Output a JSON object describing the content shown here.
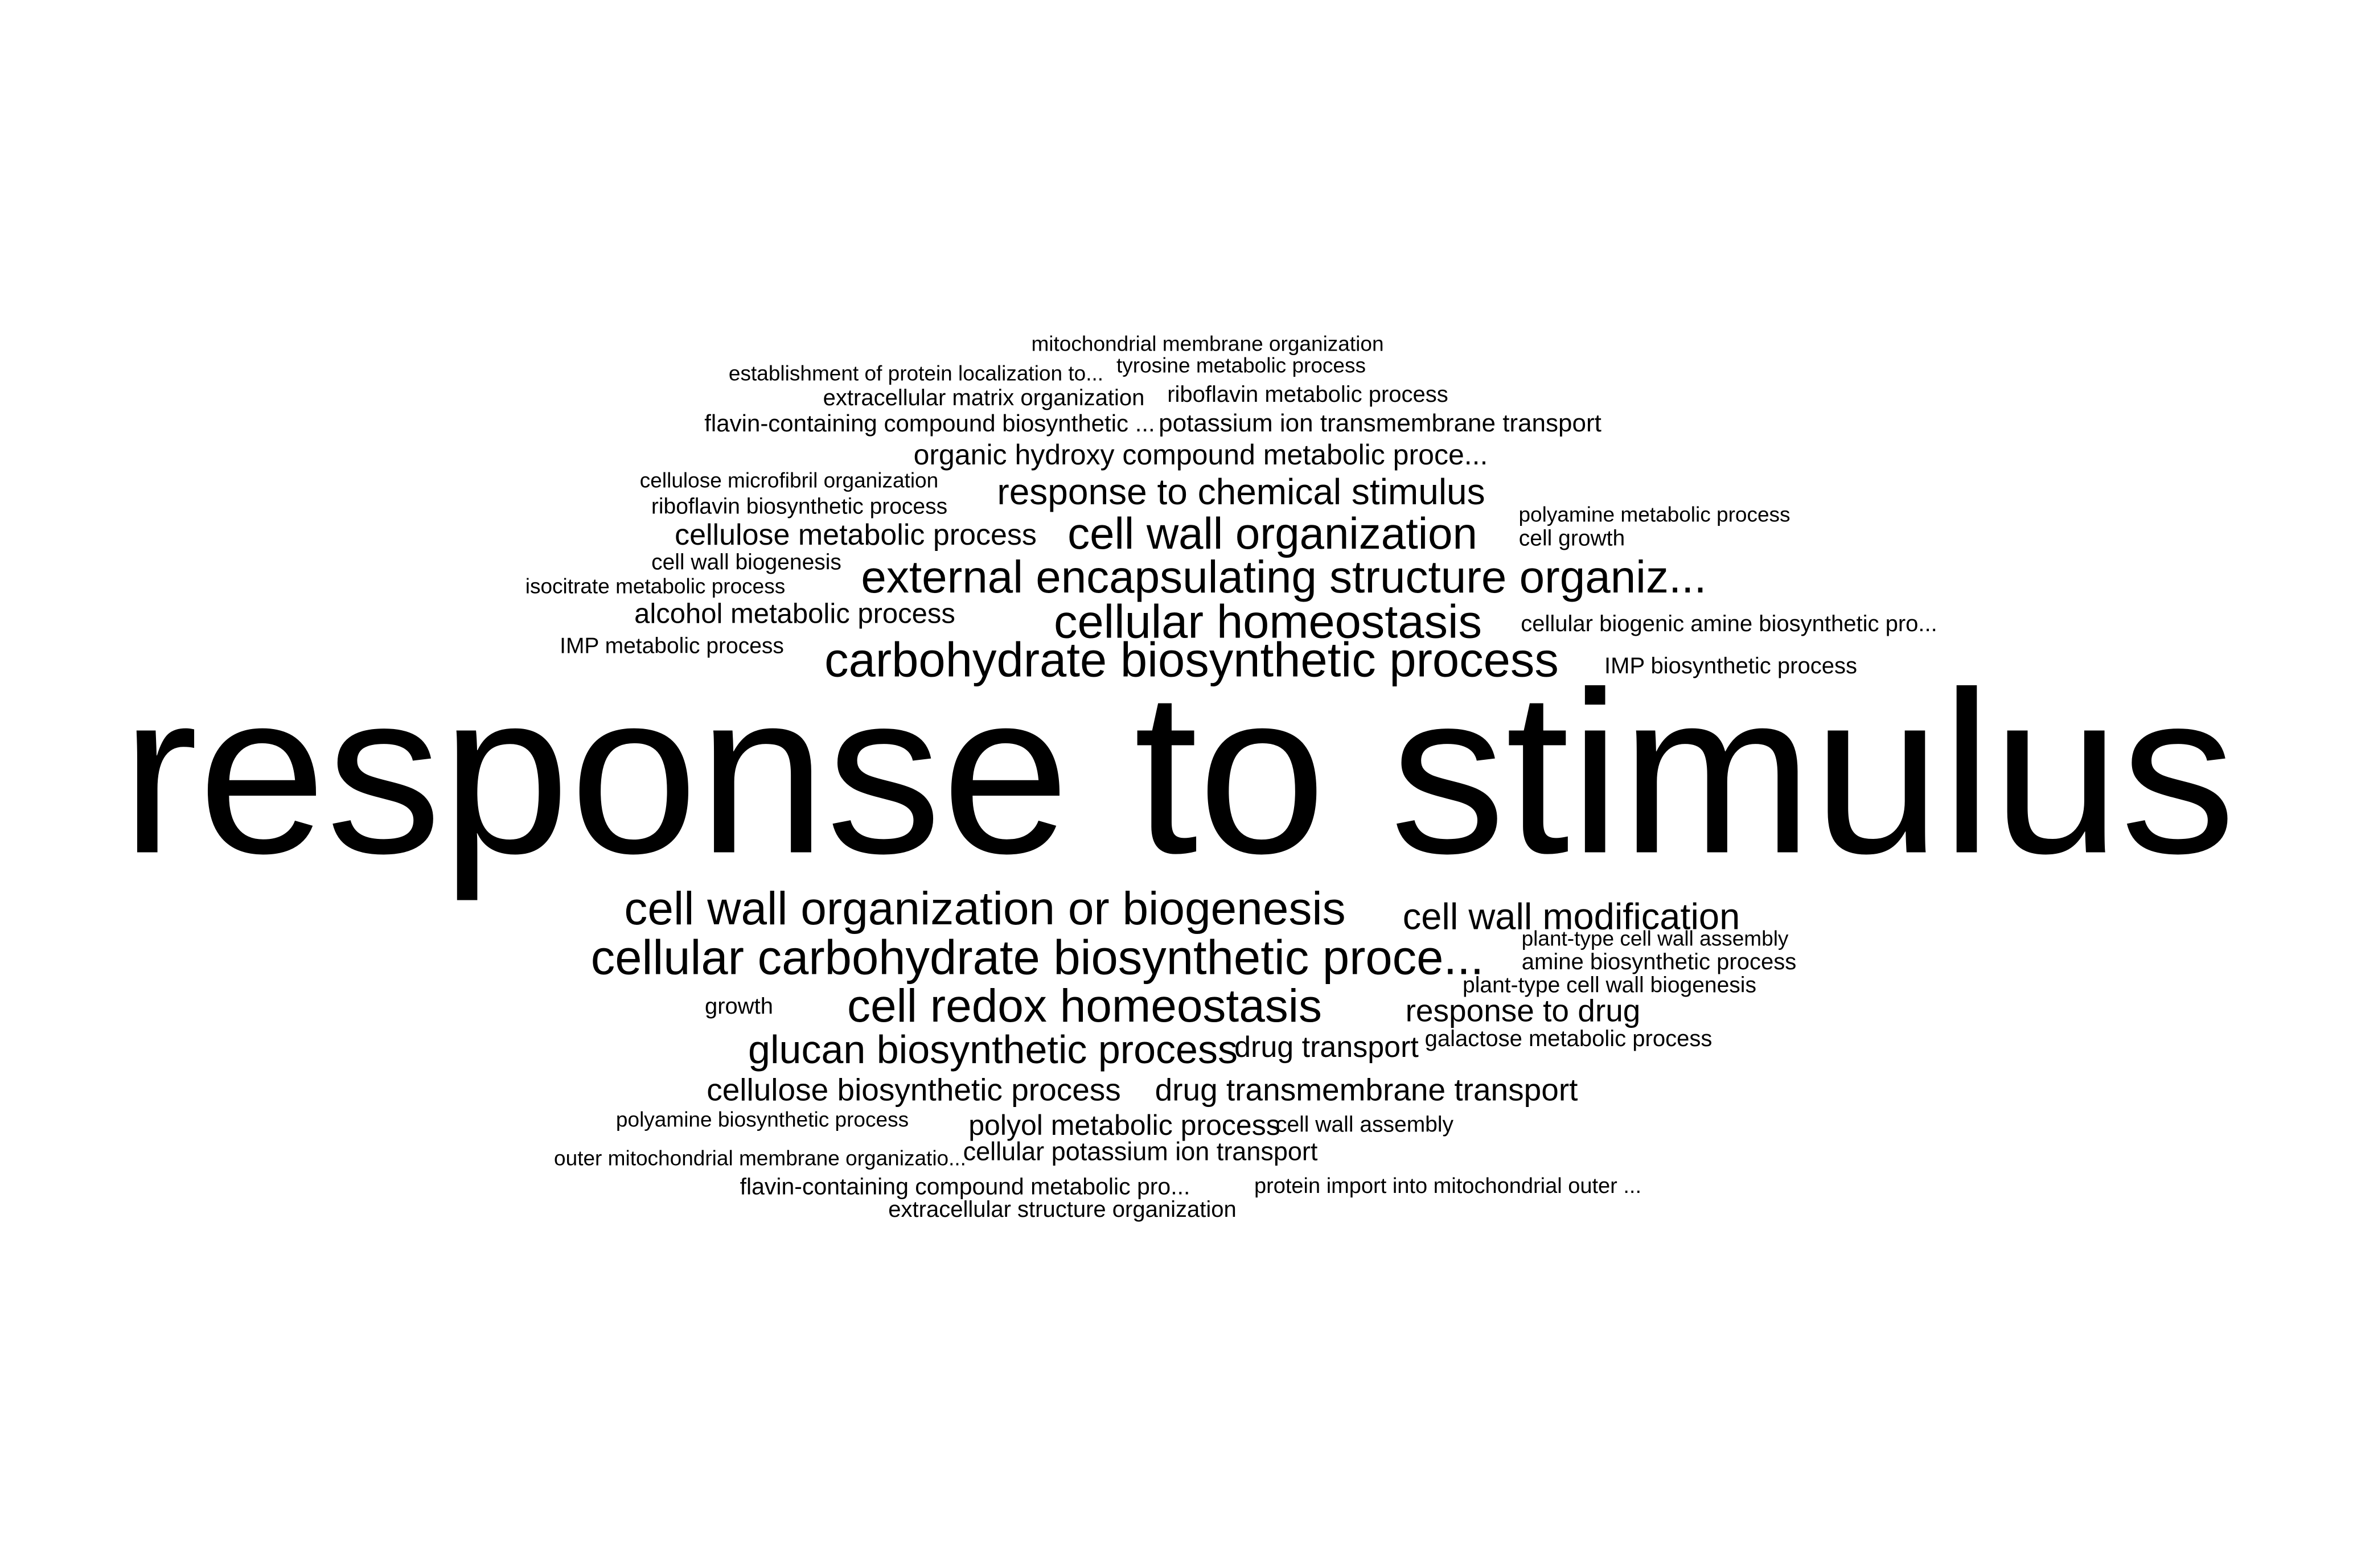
{
  "word_cloud": {
    "text_color": "#000000",
    "background_color": "#ffffff",
    "terms": [
      {
        "text": "mitochondrial membrane organization"
      },
      {
        "text": "establishment of protein localization to..."
      },
      {
        "text": "tyrosine metabolic process"
      },
      {
        "text": "extracellular matrix organization"
      },
      {
        "text": "riboflavin metabolic process"
      },
      {
        "text": "flavin-containing compound biosynthetic ..."
      },
      {
        "text": "potassium ion transmembrane transport"
      },
      {
        "text": "organic hydroxy compound metabolic proce..."
      },
      {
        "text": "cellulose microfibril organization"
      },
      {
        "text": "response to chemical stimulus"
      },
      {
        "text": "riboflavin biosynthetic process"
      },
      {
        "text": "polyamine metabolic process"
      },
      {
        "text": "cellulose metabolic process"
      },
      {
        "text": "cell wall organization"
      },
      {
        "text": "cell growth"
      },
      {
        "text": "cell wall biogenesis"
      },
      {
        "text": "isocitrate metabolic process"
      },
      {
        "text": "external encapsulating structure organiz..."
      },
      {
        "text": "alcohol metabolic process"
      },
      {
        "text": "cellular homeostasis"
      },
      {
        "text": "cellular biogenic amine biosynthetic pro..."
      },
      {
        "text": "IMP metabolic process"
      },
      {
        "text": "carbohydrate biosynthetic process"
      },
      {
        "text": "IMP biosynthetic process"
      },
      {
        "text": "response to stimulus"
      },
      {
        "text": "cell wall organization or biogenesis"
      },
      {
        "text": "cell wall modification"
      },
      {
        "text": "plant-type cell wall assembly"
      },
      {
        "text": "cellular carbohydrate biosynthetic proce..."
      },
      {
        "text": "amine biosynthetic process"
      },
      {
        "text": "plant-type cell wall biogenesis"
      },
      {
        "text": "growth"
      },
      {
        "text": "cell redox homeostasis"
      },
      {
        "text": "response to drug"
      },
      {
        "text": "glucan biosynthetic process"
      },
      {
        "text": "drug transport"
      },
      {
        "text": "galactose metabolic process"
      },
      {
        "text": "cellulose biosynthetic process"
      },
      {
        "text": "drug transmembrane transport"
      },
      {
        "text": "polyamine biosynthetic process"
      },
      {
        "text": "polyol metabolic process"
      },
      {
        "text": "cell wall assembly"
      },
      {
        "text": "outer mitochondrial membrane organizatio..."
      },
      {
        "text": "cellular potassium ion transport"
      },
      {
        "text": "flavin-containing compound metabolic pro..."
      },
      {
        "text": "protein import into mitochondrial outer ..."
      },
      {
        "text": "extracellular structure organization"
      }
    ]
  }
}
